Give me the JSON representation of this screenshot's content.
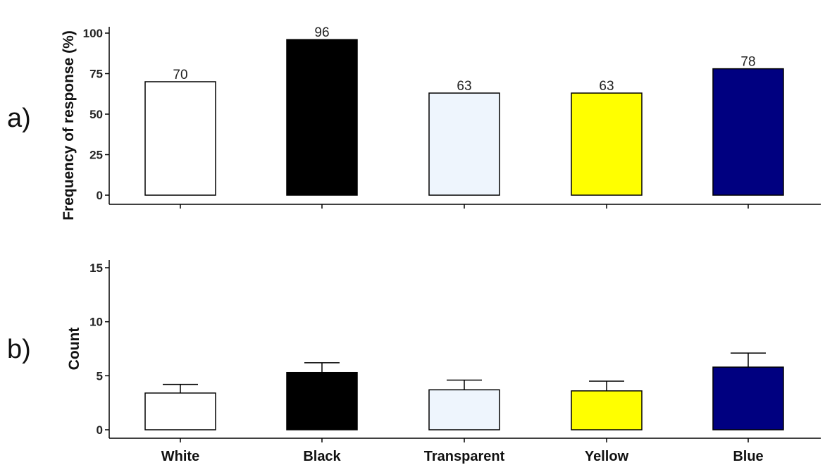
{
  "chart_data": [
    {
      "type": "bar",
      "panel_label": "a)",
      "categories": [
        "White",
        "Black",
        "Transparent",
        "Yellow",
        "Blue"
      ],
      "values": [
        70,
        96,
        63,
        63,
        78
      ],
      "data_labels": [
        "70",
        "96",
        "63",
        "63",
        "78"
      ],
      "colors": [
        "#ffffff",
        "#000000",
        "#eef5fd",
        "#ffff00",
        "#000080"
      ],
      "ylabel": "Frequency of response (%)",
      "ylim": [
        0,
        100
      ],
      "yticks": [
        0,
        25,
        50,
        75,
        100
      ],
      "ytick_labels": [
        "0",
        "25",
        "50",
        "75",
        "100"
      ],
      "grid": false
    },
    {
      "type": "bar",
      "panel_label": "b)",
      "categories": [
        "White",
        "Black",
        "Transparent",
        "Yellow",
        "Blue"
      ],
      "category_labels": [
        "White",
        "Black",
        "Transparent",
        "Yellow",
        "Blue"
      ],
      "values": [
        3.4,
        5.3,
        3.7,
        3.6,
        5.8
      ],
      "error_upper": [
        4.2,
        6.2,
        4.6,
        4.5,
        7.1
      ],
      "colors": [
        "#ffffff",
        "#000000",
        "#eef5fd",
        "#ffff00",
        "#000080"
      ],
      "ylabel": "Count",
      "ylim": [
        0,
        15
      ],
      "yticks": [
        0,
        5,
        10,
        15
      ],
      "ytick_labels": [
        "0",
        "5",
        "10",
        "15"
      ],
      "grid": false
    }
  ]
}
